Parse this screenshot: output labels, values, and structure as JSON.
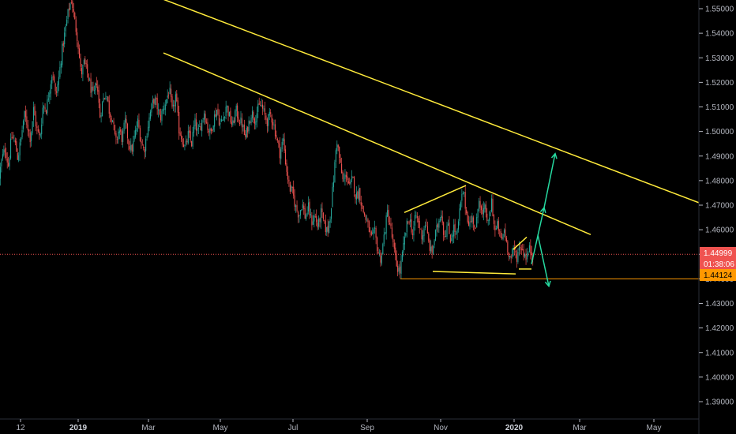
{
  "chart_data": {
    "type": "candlestick",
    "title": "",
    "xlabel": "",
    "ylabel": "",
    "ylim": [
      1.385,
      1.557
    ],
    "grid": false,
    "y_ticks": [
      "1.55000",
      "1.54000",
      "1.53000",
      "1.52000",
      "1.51000",
      "1.50000",
      "1.49000",
      "1.48000",
      "1.47000",
      "1.46000",
      "1.45000",
      "1.44000",
      "1.43000",
      "1.42000",
      "1.41000",
      "1.40000",
      "1.39000"
    ],
    "x_ticks": [
      {
        "label": "12",
        "bold": false
      },
      {
        "label": "2019",
        "bold": true
      },
      {
        "label": "Mar",
        "bold": false
      },
      {
        "label": "May",
        "bold": false
      },
      {
        "label": "Jul",
        "bold": false
      },
      {
        "label": "Sep",
        "bold": false
      },
      {
        "label": "Nov",
        "bold": false
      },
      {
        "label": "2020",
        "bold": true
      },
      {
        "label": "Mar",
        "bold": false
      },
      {
        "label": "May",
        "bold": false
      }
    ],
    "price_path": [
      [
        0,
        1.481
      ],
      [
        4,
        1.489
      ],
      [
        8,
        1.493
      ],
      [
        12,
        1.486
      ],
      [
        16,
        1.498
      ],
      [
        20,
        1.496
      ],
      [
        24,
        1.489
      ],
      [
        28,
        1.497
      ],
      [
        32,
        1.507
      ],
      [
        36,
        1.503
      ],
      [
        40,
        1.497
      ],
      [
        44,
        1.509
      ],
      [
        48,
        1.501
      ],
      [
        52,
        1.497
      ],
      [
        56,
        1.511
      ],
      [
        60,
        1.509
      ],
      [
        64,
        1.517
      ],
      [
        68,
        1.525
      ],
      [
        72,
        1.514
      ],
      [
        76,
        1.522
      ],
      [
        80,
        1.533
      ],
      [
        84,
        1.541
      ],
      [
        88,
        1.549
      ],
      [
        92,
        1.554
      ],
      [
        96,
        1.545
      ],
      [
        100,
        1.537
      ],
      [
        104,
        1.523
      ],
      [
        108,
        1.528
      ],
      [
        112,
        1.524
      ],
      [
        116,
        1.518
      ],
      [
        120,
        1.514
      ],
      [
        124,
        1.521
      ],
      [
        128,
        1.506
      ],
      [
        132,
        1.513
      ],
      [
        136,
        1.516
      ],
      [
        140,
        1.508
      ],
      [
        144,
        1.505
      ],
      [
        148,
        1.495
      ],
      [
        152,
        1.501
      ],
      [
        156,
        1.497
      ],
      [
        160,
        1.504
      ],
      [
        164,
        1.496
      ],
      [
        168,
        1.492
      ],
      [
        172,
        1.498
      ],
      [
        176,
        1.504
      ],
      [
        180,
        1.496
      ],
      [
        184,
        1.492
      ],
      [
        188,
        1.501
      ],
      [
        192,
        1.508
      ],
      [
        196,
        1.513
      ],
      [
        200,
        1.511
      ],
      [
        204,
        1.505
      ],
      [
        208,
        1.509
      ],
      [
        212,
        1.513
      ],
      [
        216,
        1.517
      ],
      [
        220,
        1.507
      ],
      [
        224,
        1.515
      ],
      [
        228,
        1.501
      ],
      [
        232,
        1.497
      ],
      [
        236,
        1.493
      ],
      [
        240,
        1.499
      ],
      [
        244,
        1.495
      ],
      [
        248,
        1.504
      ],
      [
        252,
        1.499
      ],
      [
        256,
        1.503
      ],
      [
        260,
        1.508
      ],
      [
        264,
        1.502
      ],
      [
        268,
        1.499
      ],
      [
        272,
        1.505
      ],
      [
        276,
        1.509
      ],
      [
        280,
        1.503
      ],
      [
        284,
        1.505
      ],
      [
        288,
        1.511
      ],
      [
        292,
        1.506
      ],
      [
        296,
        1.502
      ],
      [
        300,
        1.509
      ],
      [
        304,
        1.505
      ],
      [
        308,
        1.503
      ],
      [
        312,
        1.497
      ],
      [
        316,
        1.503
      ],
      [
        320,
        1.508
      ],
      [
        324,
        1.505
      ],
      [
        328,
        1.509
      ],
      [
        332,
        1.511
      ],
      [
        336,
        1.507
      ],
      [
        340,
        1.504
      ],
      [
        344,
        1.507
      ],
      [
        348,
        1.503
      ],
      [
        352,
        1.497
      ],
      [
        356,
        1.491
      ],
      [
        360,
        1.497
      ],
      [
        364,
        1.485
      ],
      [
        368,
        1.477
      ],
      [
        372,
        1.475
      ],
      [
        376,
        1.469
      ],
      [
        380,
        1.466
      ],
      [
        384,
        1.471
      ],
      [
        388,
        1.465
      ],
      [
        392,
        1.469
      ],
      [
        396,
        1.463
      ],
      [
        400,
        1.466
      ],
      [
        404,
        1.461
      ],
      [
        408,
        1.467
      ],
      [
        412,
        1.462
      ],
      [
        416,
        1.459
      ],
      [
        420,
        1.467
      ],
      [
        424,
        1.481
      ],
      [
        428,
        1.497
      ],
      [
        432,
        1.487
      ],
      [
        436,
        1.479
      ],
      [
        440,
        1.483
      ],
      [
        444,
        1.477
      ],
      [
        448,
        1.481
      ],
      [
        452,
        1.473
      ],
      [
        456,
        1.476
      ],
      [
        460,
        1.469
      ],
      [
        464,
        1.465
      ],
      [
        468,
        1.461
      ],
      [
        472,
        1.456
      ],
      [
        476,
        1.459
      ],
      [
        480,
        1.451
      ],
      [
        484,
        1.448
      ],
      [
        488,
        1.458
      ],
      [
        492,
        1.467
      ],
      [
        496,
        1.461
      ],
      [
        500,
        1.452
      ],
      [
        504,
        1.445
      ],
      [
        508,
        1.443
      ],
      [
        512,
        1.452
      ],
      [
        516,
        1.461
      ],
      [
        520,
        1.465
      ],
      [
        524,
        1.458
      ],
      [
        528,
        1.466
      ],
      [
        532,
        1.462
      ],
      [
        536,
        1.457
      ],
      [
        540,
        1.463
      ],
      [
        544,
        1.455
      ],
      [
        548,
        1.45
      ],
      [
        552,
        1.457
      ],
      [
        556,
        1.462
      ],
      [
        560,
        1.468
      ],
      [
        564,
        1.457
      ],
      [
        568,
        1.462
      ],
      [
        572,
        1.456
      ],
      [
        576,
        1.461
      ],
      [
        580,
        1.457
      ],
      [
        584,
        1.469
      ],
      [
        588,
        1.476
      ],
      [
        592,
        1.467
      ],
      [
        596,
        1.462
      ],
      [
        600,
        1.465
      ],
      [
        604,
        1.459
      ],
      [
        608,
        1.474
      ],
      [
        612,
        1.465
      ],
      [
        616,
        1.469
      ],
      [
        620,
        1.461
      ],
      [
        624,
        1.472
      ],
      [
        628,
        1.459
      ],
      [
        632,
        1.462
      ],
      [
        636,
        1.455
      ],
      [
        640,
        1.46
      ],
      [
        644,
        1.453
      ],
      [
        648,
        1.448
      ],
      [
        652,
        1.452
      ],
      [
        656,
        1.449
      ],
      [
        660,
        1.454
      ],
      [
        664,
        1.451
      ],
      [
        668,
        1.449
      ],
      [
        672,
        1.452
      ],
      [
        676,
        1.45
      ]
    ],
    "trendlines": [
      {
        "from": [
          197,
          1.555
        ],
        "to": [
          885,
          1.471
        ],
        "color": "#ffeb3b"
      },
      {
        "from": [
          207,
          1.532
        ],
        "to": [
          748,
          1.458
        ],
        "color": "#ffeb3b"
      },
      {
        "from": [
          512,
          1.467
        ],
        "to": [
          590,
          1.478
        ],
        "color": "#ffeb3b"
      },
      {
        "from": [
          548,
          1.443
        ],
        "to": [
          653,
          1.442
        ],
        "color": "#ffeb3b"
      },
      {
        "from": [
          650,
          1.452
        ],
        "to": [
          667,
          1.457
        ],
        "color": "#ffeb3b"
      },
      {
        "from": [
          657,
          1.444
        ],
        "to": [
          673,
          1.444
        ],
        "color": "#ffeb3b"
      },
      {
        "from": [
          507,
          1.44
        ],
        "to": [
          885,
          1.44
        ],
        "color": "#ff9800"
      }
    ],
    "arrows": [
      {
        "points": [
          [
            673,
            1.446
          ],
          [
            689,
            1.469
          ],
          [
            703,
            1.491
          ]
        ],
        "color": "#26d9a0"
      },
      {
        "points": [
          [
            681,
            1.458
          ],
          [
            695,
            1.437
          ]
        ],
        "color": "#26d9a0"
      }
    ],
    "current_price": "1.44999",
    "countdown": "01:38:06",
    "level_label": "1.44124",
    "current_price_value": 1.44999,
    "level_value": 1.44124,
    "colors": {
      "up": "#26a69a",
      "down": "#ef5350",
      "trend": "#ffeb3b",
      "level": "#ff9800",
      "arrow": "#26d9a0",
      "price_badge": "#ef5350",
      "level_badge": "#ff9800",
      "axis_text": "#b2b5be",
      "background": "#000000"
    }
  }
}
